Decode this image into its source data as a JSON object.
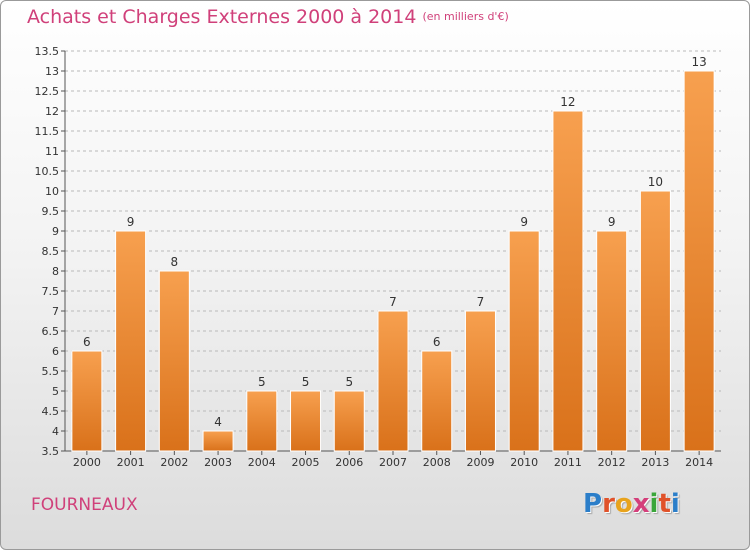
{
  "title": "Achats et Charges Externes 2000 à 2014",
  "unit": "(en milliers d'€)",
  "city": "FOURNEAUX",
  "logo": {
    "text": "Proxiti",
    "letters": [
      {
        "ch": "P",
        "color": "#2b7ec9"
      },
      {
        "ch": "r",
        "color": "#e0522a"
      },
      {
        "ch": "o",
        "color": "#e8a31c"
      },
      {
        "ch": "x",
        "color": "#d43e7a"
      },
      {
        "ch": "i",
        "color": "#3aa63a"
      },
      {
        "ch": "t",
        "color": "#e0522a"
      },
      {
        "ch": "i",
        "color": "#2b7ec9"
      }
    ]
  },
  "colors": {
    "bar_top": "#f7a04f",
    "bar_bottom": "#d9711a",
    "title": "#d0407a",
    "grid": "#b9b9b9",
    "axis_text": "#333333"
  },
  "chart_data": {
    "type": "bar",
    "title": "Achats et Charges Externes 2000 à 2014",
    "xlabel": "",
    "ylabel": "",
    "categories": [
      "2000",
      "2001",
      "2002",
      "2003",
      "2004",
      "2005",
      "2006",
      "2007",
      "2008",
      "2009",
      "2010",
      "2011",
      "2012",
      "2013",
      "2014"
    ],
    "values": [
      6,
      9,
      8,
      4,
      5,
      5,
      5,
      7,
      6,
      7,
      9,
      12,
      9,
      10,
      13
    ],
    "ylim": [
      3.5,
      13.5
    ],
    "yticks": [
      "3.5",
      "4",
      "4.5",
      "5",
      "5.5",
      "6",
      "6.5",
      "7",
      "7.5",
      "8",
      "8.5",
      "9",
      "9.5",
      "10",
      "10.5",
      "11",
      "11.5",
      "12",
      "12.5",
      "13",
      "13.5"
    ],
    "grid": "horizontal dashed",
    "legend": "none"
  }
}
